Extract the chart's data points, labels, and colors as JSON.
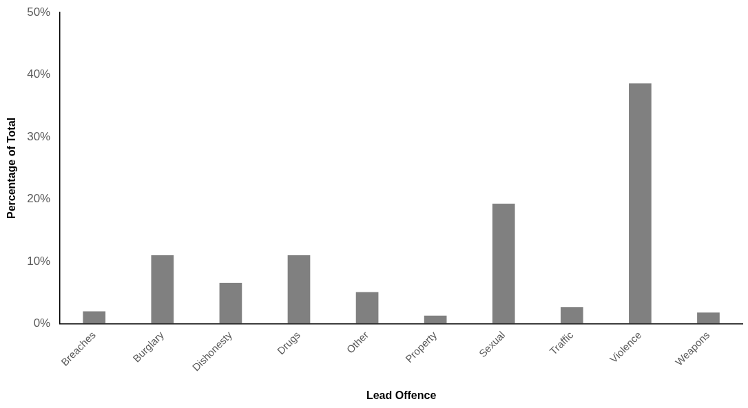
{
  "chart_data": {
    "type": "bar",
    "xlabel": "Lead Offence",
    "ylabel": "Percentage of Total",
    "categories": [
      "Breaches",
      "Burglary",
      "Dishonesty",
      "Drugs",
      "Other",
      "Property",
      "Sexual",
      "Traffic",
      "Violence",
      "Weapons"
    ],
    "values": [
      2.0,
      11.0,
      6.6,
      11.0,
      5.1,
      1.3,
      19.3,
      2.7,
      38.6,
      1.8
    ],
    "color": "#808080",
    "ylim": [
      0,
      50
    ],
    "yticks": [
      {
        "value": 0,
        "label": "0%"
      },
      {
        "value": 10,
        "label": "10%"
      },
      {
        "value": 20,
        "label": "20%"
      },
      {
        "value": 30,
        "label": "30%"
      },
      {
        "value": 40,
        "label": "40%"
      },
      {
        "value": 50,
        "label": "50%"
      }
    ],
    "grid": false,
    "legend": false
  }
}
